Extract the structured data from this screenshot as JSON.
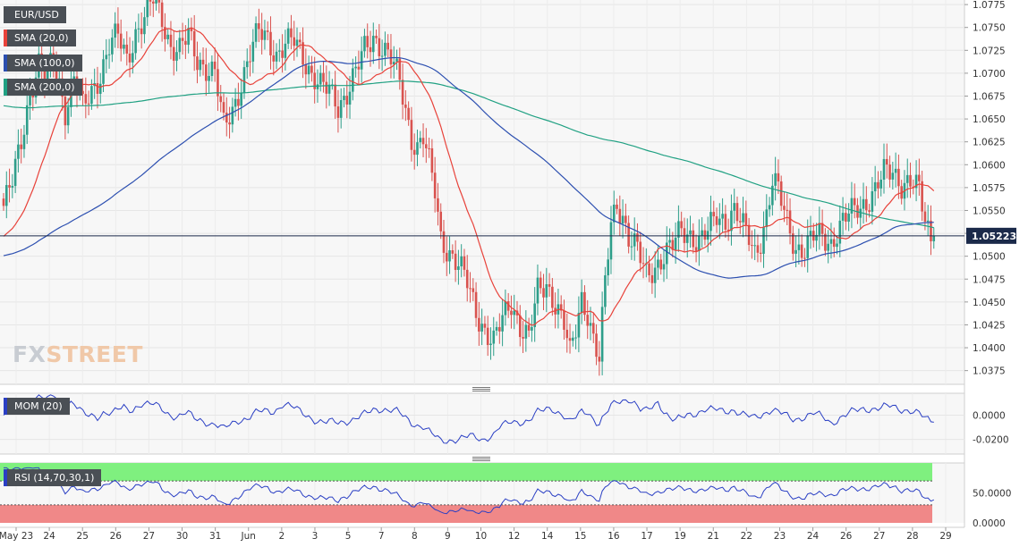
{
  "symbol": "EUR/USD",
  "last_price": "1.05223",
  "legend": {
    "sma20": "SMA (20,0)",
    "sma100": "SMA (100,0)",
    "sma200": "SMA (200,0)",
    "mom": "MOM (20)",
    "rsi": "RSI (14,70,30,1)"
  },
  "watermark": {
    "part1": "FX",
    "part2": "STREET"
  },
  "colors": {
    "up": "#2e9e8a",
    "down": "#d9534f",
    "sma20": "#e8423a",
    "sma100": "#2c4fb0",
    "sma200": "#21a183",
    "mom": "#2a3fc4",
    "rsi": "#2a3fc4",
    "rsi_overbought": "#7ff07f",
    "rsi_oversold": "#f08888",
    "price_line": "#1b2a4a"
  },
  "chart_data": {
    "type": "candlestick",
    "timeframe": "4h",
    "y_axis": {
      "min": 1.036,
      "max": 1.078,
      "ticks": [
        "1.0775",
        "1.0750",
        "1.0725",
        "1.0700",
        "1.0675",
        "1.0650",
        "1.0625",
        "1.0600",
        "1.0575",
        "1.0550",
        "1.0525",
        "1.0500",
        "1.0475",
        "1.0450",
        "1.0425",
        "1.0400",
        "1.0375"
      ]
    },
    "x_axis": {
      "labels": [
        "May 23",
        "24",
        "25",
        "26",
        "27",
        "30",
        "31",
        "Jun",
        "2",
        "3",
        "5",
        "7",
        "8",
        "9",
        "10",
        "12",
        "14",
        "15",
        "16",
        "17",
        "19",
        "21",
        "22",
        "23",
        "24",
        "26",
        "27",
        "28",
        "29"
      ]
    },
    "close_anchors": [
      [
        0,
        1.0555
      ],
      [
        3,
        1.058
      ],
      [
        6,
        1.0625
      ],
      [
        9,
        1.068
      ],
      [
        12,
        1.071
      ],
      [
        14,
        1.069
      ],
      [
        17,
        1.0715
      ],
      [
        19,
        1.069
      ],
      [
        21,
        1.066
      ],
      [
        24,
        1.0695
      ],
      [
        27,
        1.066
      ],
      [
        30,
        1.068
      ],
      [
        33,
        1.07
      ],
      [
        36,
        1.073
      ],
      [
        39,
        1.074
      ],
      [
        42,
        1.0715
      ],
      [
        45,
        1.0745
      ],
      [
        48,
        1.076
      ],
      [
        51,
        1.078
      ],
      [
        54,
        1.076
      ],
      [
        57,
        1.073
      ],
      [
        60,
        1.0725
      ],
      [
        63,
        1.074
      ],
      [
        66,
        1.0715
      ],
      [
        70,
        1.0705
      ],
      [
        72,
        1.07
      ],
      [
        74,
        1.066
      ],
      [
        75,
        1.064
      ],
      [
        78,
        1.066
      ],
      [
        81,
        1.069
      ],
      [
        84,
        1.072
      ],
      [
        87,
        1.0745
      ],
      [
        90,
        1.074
      ],
      [
        93,
        1.072
      ],
      [
        96,
        1.073
      ],
      [
        99,
        1.0735
      ],
      [
        102,
        1.072
      ],
      [
        105,
        1.07
      ],
      [
        108,
        1.0685
      ],
      [
        111,
        1.068
      ],
      [
        114,
        1.0665
      ],
      [
        117,
        1.068
      ],
      [
        120,
        1.07
      ],
      [
        123,
        1.0725
      ],
      [
        126,
        1.074
      ],
      [
        129,
        1.073
      ],
      [
        132,
        1.0715
      ],
      [
        135,
        1.069
      ],
      [
        137,
        1.066
      ],
      [
        139,
        1.063
      ],
      [
        141,
        1.062
      ],
      [
        143,
        1.063
      ],
      [
        145,
        1.06
      ],
      [
        147,
        1.057
      ],
      [
        149,
        1.052
      ],
      [
        152,
        1.0505
      ],
      [
        155,
        1.049
      ],
      [
        158,
        1.047
      ],
      [
        161,
        1.044
      ],
      [
        164,
        1.042
      ],
      [
        167,
        1.0405
      ],
      [
        170,
        1.043
      ],
      [
        173,
        1.045
      ],
      [
        176,
        1.0425
      ],
      [
        179,
        1.041
      ],
      [
        182,
        1.046
      ],
      [
        185,
        1.047
      ],
      [
        188,
        1.045
      ],
      [
        191,
        1.0425
      ],
      [
        193,
        1.039
      ],
      [
        195,
        1.042
      ],
      [
        197,
        1.0455
      ],
      [
        199,
        1.044
      ],
      [
        201,
        1.041
      ],
      [
        203,
        1.0385
      ],
      [
        205,
        1.047
      ],
      [
        207,
        1.0535
      ],
      [
        209,
        1.056
      ],
      [
        211,
        1.0545
      ],
      [
        213,
        1.052
      ],
      [
        216,
        1.0505
      ],
      [
        219,
        1.048
      ],
      [
        222,
        1.049
      ],
      [
        225,
        1.05
      ],
      [
        228,
        1.051
      ],
      [
        231,
        1.053
      ],
      [
        234,
        1.0525
      ],
      [
        237,
        1.0515
      ],
      [
        240,
        1.0525
      ],
      [
        243,
        1.0545
      ],
      [
        246,
        1.054
      ],
      [
        249,
        1.055
      ],
      [
        252,
        1.053
      ],
      [
        254,
        1.052
      ],
      [
        256,
        1.0505
      ],
      [
        258,
        1.052
      ],
      [
        260,
        1.0545
      ],
      [
        262,
        1.058
      ],
      [
        264,
        1.057
      ],
      [
        267,
        1.054
      ],
      [
        270,
        1.051
      ],
      [
        273,
        1.0505
      ],
      [
        276,
        1.052
      ],
      [
        279,
        1.0525
      ],
      [
        282,
        1.0515
      ],
      [
        285,
        1.053
      ],
      [
        288,
        1.0545
      ],
      [
        291,
        1.0555
      ],
      [
        294,
        1.056
      ],
      [
        297,
        1.057
      ],
      [
        300,
        1.059
      ],
      [
        303,
        1.0595
      ],
      [
        306,
        1.058
      ],
      [
        309,
        1.058
      ],
      [
        312,
        1.057
      ],
      [
        314,
        1.054
      ],
      [
        316,
        1.0522
      ]
    ],
    "mom_axis": {
      "min": -0.032,
      "max": 0.018,
      "ticks": [
        "0.0000",
        "-0.0200"
      ]
    },
    "rsi_axis": {
      "min": 0,
      "max": 100,
      "overbought": 70,
      "oversold": 30,
      "ticks": [
        "50.0000",
        "0.0000"
      ]
    }
  }
}
